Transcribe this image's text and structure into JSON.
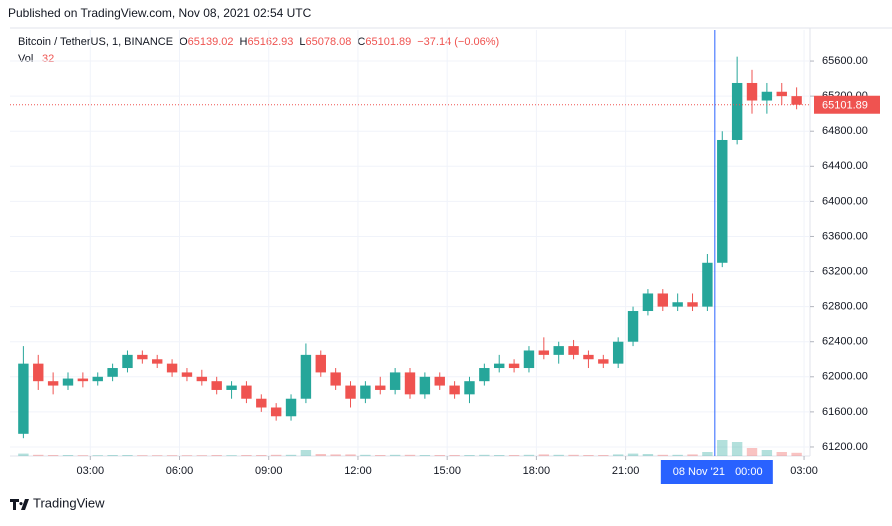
{
  "header": "Published on TradingView.com, Nov 08, 2021 02:54 UTC",
  "footer": "TradingView",
  "chart_data": {
    "type": "candlestick",
    "legend": {
      "symbol": "Bitcoin / TetherUS, 1, BINANCE",
      "open_label": "O",
      "open": 65139.02,
      "high_label": "H",
      "high": 65162.93,
      "low_label": "L",
      "low": 65078.08,
      "close_label": "C",
      "close": 65101.89,
      "change": "−37.14 (−0.06%)",
      "vol_label": "Vol",
      "vol": 32
    },
    "up_color": "#26a69a",
    "down_color": "#ef5350",
    "x": [
      0.5,
      1,
      1.5,
      2,
      2.5,
      3,
      3.5,
      4,
      4.5,
      5,
      5.5,
      6,
      6.5,
      7,
      7.5,
      8,
      8.5,
      9,
      9.5,
      10,
      10.5,
      11,
      11.5,
      12,
      12.5,
      13,
      13.5,
      14,
      14.5,
      15,
      15.5,
      16,
      16.5,
      17,
      17.5,
      18,
      18.5,
      19,
      19.5,
      20,
      20.5,
      21,
      21.5,
      22,
      22.5,
      23,
      23.5,
      24,
      24.5,
      25,
      25.5,
      26,
      26.5
    ],
    "open": [
      61350,
      62150,
      61950,
      61900,
      61980,
      61950,
      62000,
      62100,
      62250,
      62200,
      62150,
      62050,
      62000,
      61950,
      61850,
      61900,
      61750,
      61650,
      61550,
      61750,
      62250,
      62050,
      61900,
      61750,
      61900,
      61850,
      62050,
      61800,
      62000,
      61900,
      61800,
      61950,
      62100,
      62150,
      62100,
      62300,
      62250,
      62350,
      62250,
      62200,
      62150,
      62400,
      62750,
      62950,
      62800,
      62850,
      62800,
      63300,
      64700,
      65350,
      65150,
      65250,
      65200
    ],
    "high": [
      62350,
      62250,
      62050,
      62050,
      62050,
      62050,
      62150,
      62300,
      62300,
      62250,
      62200,
      62100,
      62080,
      62000,
      61950,
      61950,
      61800,
      61700,
      61800,
      62380,
      62300,
      62100,
      61950,
      61950,
      62000,
      62100,
      62100,
      62050,
      62050,
      61950,
      62000,
      62150,
      62250,
      62200,
      62350,
      62450,
      62400,
      62420,
      62300,
      62250,
      62450,
      62800,
      63000,
      63000,
      62950,
      62950,
      63400,
      64800,
      65650,
      65500,
      65350,
      65350,
      65300
    ],
    "low": [
      61300,
      61850,
      61800,
      61850,
      61880,
      61900,
      61950,
      62050,
      62150,
      62100,
      62000,
      61950,
      61900,
      61800,
      61750,
      61700,
      61600,
      61500,
      61500,
      61700,
      62000,
      61850,
      61650,
      61700,
      61800,
      61800,
      61750,
      61750,
      61850,
      61750,
      61700,
      61900,
      62050,
      62050,
      62050,
      62200,
      62150,
      62200,
      62100,
      62100,
      62100,
      62350,
      62700,
      62750,
      62750,
      62750,
      62750,
      63250,
      64650,
      65000,
      65000,
      65100,
      65050
    ],
    "close": [
      62150,
      61950,
      61900,
      61980,
      61950,
      62000,
      62100,
      62250,
      62200,
      62150,
      62050,
      62000,
      61950,
      61850,
      61900,
      61750,
      61650,
      61550,
      61750,
      62250,
      62050,
      61900,
      61750,
      61900,
      61850,
      62050,
      61800,
      62000,
      61900,
      61800,
      61950,
      62100,
      62150,
      62100,
      62300,
      62250,
      62350,
      62250,
      62200,
      62150,
      62400,
      62750,
      62950,
      62800,
      62850,
      62800,
      63300,
      64700,
      65350,
      65150,
      65250,
      65200,
      65101.89
    ],
    "volume": [
      60,
      30,
      25,
      25,
      20,
      20,
      25,
      25,
      20,
      20,
      20,
      20,
      20,
      25,
      20,
      25,
      25,
      30,
      30,
      150,
      50,
      40,
      40,
      30,
      25,
      30,
      30,
      25,
      25,
      25,
      25,
      30,
      25,
      25,
      30,
      40,
      30,
      30,
      25,
      25,
      40,
      60,
      50,
      30,
      30,
      40,
      100,
      400,
      350,
      200,
      150,
      100,
      80
    ],
    "vlim": [
      0,
      1000
    ],
    "last_price": {
      "value": 65101.89,
      "label": "65101.89"
    },
    "crosshair": {
      "x": 24,
      "date": "08 Nov '21",
      "time": "00:00"
    },
    "xlim": [
      0.3,
      27.2
    ],
    "xticks": [
      {
        "value": 3,
        "label": "03:00"
      },
      {
        "value": 6,
        "label": "06:00"
      },
      {
        "value": 9,
        "label": "09:00"
      },
      {
        "value": 12,
        "label": "12:00"
      },
      {
        "value": 15,
        "label": "15:00"
      },
      {
        "value": 18,
        "label": "18:00"
      },
      {
        "value": 21,
        "label": "21:00"
      },
      {
        "value": 27,
        "label": "03:00"
      }
    ],
    "ylim": [
      61097,
      65954
    ],
    "yticks": [
      {
        "value": 61200,
        "label": "61200.00"
      },
      {
        "value": 61600,
        "label": "61600.00"
      },
      {
        "value": 62000,
        "label": "62000.00"
      },
      {
        "value": 62400,
        "label": "62400.00"
      },
      {
        "value": 62800,
        "label": "62800.00"
      },
      {
        "value": 63200,
        "label": "63200.00"
      },
      {
        "value": 63600,
        "label": "63600.00"
      },
      {
        "value": 64000,
        "label": "64000.00"
      },
      {
        "value": 64400,
        "label": "64400.00"
      },
      {
        "value": 64800,
        "label": "64800.00"
      },
      {
        "value": 65200,
        "label": "65200.00"
      },
      {
        "value": 65600,
        "label": "65600.00"
      }
    ],
    "grid": true
  }
}
